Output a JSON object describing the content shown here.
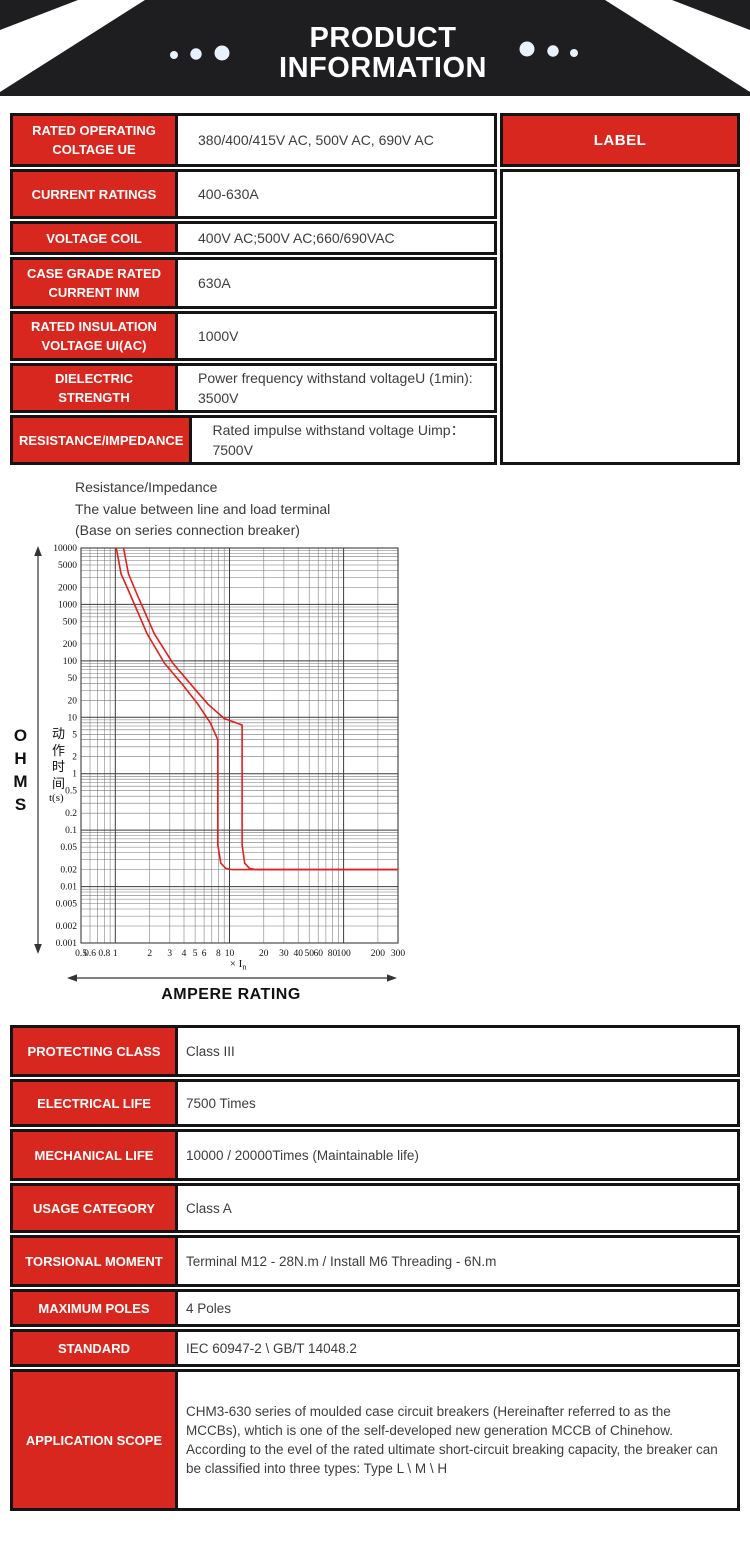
{
  "colors": {
    "accent_red": "#d8271f",
    "banner_bg": "#1e1d20",
    "table_border": "#141414",
    "curve_red": "#e41e1e",
    "dot_fill": "#e9f2fc"
  },
  "header": {
    "title": "PRODUCT INFORMATION"
  },
  "spec_table": {
    "label_header": "LABEL",
    "rows": [
      {
        "label": "RATED OPERATING COLTAGE UE",
        "value": "380/400/415V AC, 500V AC, 690V AC"
      },
      {
        "label": "CURRENT RATINGS",
        "value": "400-630A"
      },
      {
        "label": "VOLTAGE COIL",
        "value": "400V AC;500V AC;660/690VAC"
      },
      {
        "label": "CASE GRADE RATED CURRENT INM",
        "value": "630A"
      },
      {
        "label": "RATED INSULATION VOLTAGE UI(AC)",
        "value": "1000V"
      },
      {
        "label": "DIELECTRIC STRENGTH",
        "value": "Power frequency withstand voltageU (1min):\n3500V"
      },
      {
        "label": "RESISTANCE/IMPEDANCE",
        "value": "Rated impulse withstand voltage Uimp：\n7500V"
      }
    ]
  },
  "chart_data": {
    "type": "line",
    "title_lines": [
      "Resistance/Impedance",
      "The value between line and load terminal",
      "(Base on series connection breaker)"
    ],
    "left_label": "OHMS",
    "bottom_label": "AMPERE RATING",
    "x_axis": {
      "label": "× In",
      "scale": "log",
      "min": 0.5,
      "max": 300,
      "tick_labels": [
        0.5,
        0.6,
        0.8,
        1,
        2,
        3,
        4,
        5,
        6,
        8,
        10,
        20,
        30,
        40,
        50,
        60,
        80,
        100,
        200,
        300
      ]
    },
    "y_axis": {
      "title": "动作时间",
      "unit": "t(s)",
      "scale": "log",
      "min": 0.001,
      "max": 10000,
      "tick_labels": [
        10000,
        5000,
        2000,
        1000,
        500,
        200,
        100,
        50,
        20,
        10,
        5,
        2,
        1,
        0.5,
        0.2,
        0.1,
        0.05,
        0.02,
        0.01,
        0.005,
        0.002,
        0.001
      ]
    },
    "grid": true,
    "series": [
      {
        "name": "trip-curve-min",
        "color": "#e41e1e",
        "points": [
          [
            1.02,
            10000
          ],
          [
            1.12,
            3500
          ],
          [
            1.35,
            1500
          ],
          [
            1.9,
            300
          ],
          [
            2.7,
            90
          ],
          [
            3.8,
            40
          ],
          [
            5.3,
            17
          ],
          [
            6.8,
            8
          ],
          [
            7.9,
            4
          ],
          [
            7.9,
            0.055
          ],
          [
            8.4,
            0.026
          ],
          [
            9.3,
            0.021
          ],
          [
            10.5,
            0.02
          ],
          [
            300,
            0.02
          ]
        ]
      },
      {
        "name": "trip-curve-max",
        "color": "#e41e1e",
        "points": [
          [
            1.18,
            10000
          ],
          [
            1.3,
            3500
          ],
          [
            1.55,
            1500
          ],
          [
            2.2,
            300
          ],
          [
            3.2,
            90
          ],
          [
            4.5,
            40
          ],
          [
            6.5,
            17
          ],
          [
            9,
            9.5
          ],
          [
            12.9,
            7.3
          ],
          [
            12.9,
            0.055
          ],
          [
            13.6,
            0.026
          ],
          [
            15,
            0.021
          ],
          [
            17,
            0.02
          ],
          [
            300,
            0.02
          ]
        ]
      }
    ]
  },
  "detail_table": {
    "rows": [
      {
        "label": "PROTECTING CLASS",
        "value": "Class III"
      },
      {
        "label": "ELECTRICAL LIFE",
        "value": "7500 Times"
      },
      {
        "label": "MECHANICAL LIFE",
        "value": "10000 / 20000Times  (Maintainable life)"
      },
      {
        "label": "USAGE CATEGORY",
        "value": "Class A"
      },
      {
        "label": "TORSIONAL MOMENT",
        "value": "Terminal M12 - 28N.m / Install M6 Threading - 6N.m"
      },
      {
        "label": "MAXIMUM POLES",
        "value": "4 Poles"
      },
      {
        "label": "STANDARD",
        "value": "IEC 60947-2 \\ GB/T 14048.2"
      },
      {
        "label": "APPLICATION SCOPE",
        "value": "CHM3-630 series of moulded case circuit breakers (Hereinafter referred to as the MCCBs), whtich is one of the self-developed new generation MCCB of Chinehow. According to the evel of the rated ultimate short-circuit breaking capacity, the breaker can be classified into three types: Type L \\ M \\ H"
      }
    ]
  }
}
